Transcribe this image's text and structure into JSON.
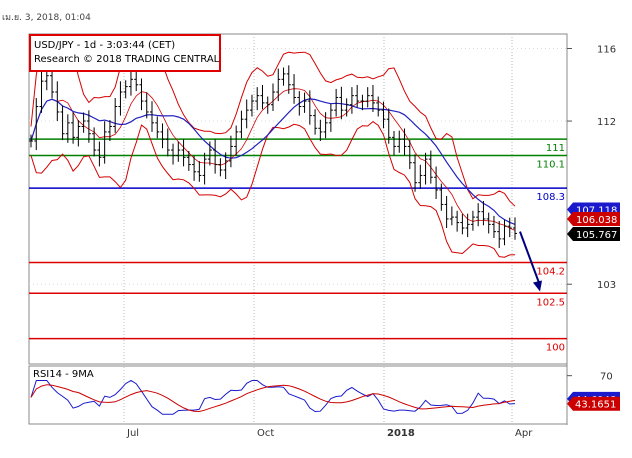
{
  "timestamp": "เม.ย. 3, 2018, 01:04",
  "chart_data": {
    "type": "candlestick",
    "title": "USD/JPY - 1d - 3:03:44 (CET)",
    "subtitle": "Research © 2018 TRADING CENTRAL",
    "x_ticks": [
      "Jul",
      "Oct",
      "2018",
      "Apr"
    ],
    "y_ticks": [
      116,
      112,
      103
    ],
    "ylim": [
      98.6,
      116.8
    ],
    "levels": [
      {
        "label": "111",
        "value": 111.0,
        "color": "#008000"
      },
      {
        "label": "110.1",
        "value": 110.1,
        "color": "#008000"
      },
      {
        "label": "108.3",
        "value": 108.3,
        "color": "#0000cc"
      },
      {
        "label": "104.2",
        "value": 104.2,
        "color": "#dd0000"
      },
      {
        "label": "102.5",
        "value": 102.5,
        "color": "#dd0000"
      },
      {
        "label": "100",
        "value": 100.0,
        "color": "#dd0000"
      }
    ],
    "price_tags": [
      {
        "label": "107.118",
        "value": 107.118,
        "bg": "#1a1acc",
        "fg": "#ffffff"
      },
      {
        "label": "106.038",
        "value": 106.6,
        "bg": "#cc0000",
        "fg": "#ffffff"
      },
      {
        "label": "105.767",
        "value": 105.767,
        "bg": "#000000",
        "fg": "#ffffff"
      }
    ],
    "forecast_arrow": {
      "from": 105.9,
      "to": 102.6
    },
    "close_series": [
      110.9,
      112.8,
      114.2,
      114.5,
      113.6,
      112.5,
      111.3,
      111.9,
      111.1,
      111.7,
      112.0,
      111.3,
      110.4,
      110.0,
      111.4,
      111.7,
      112.8,
      113.6,
      113.9,
      114.3,
      114.0,
      113.1,
      112.5,
      111.9,
      111.4,
      111.0,
      110.4,
      110.1,
      110.4,
      110.0,
      109.6,
      109.2,
      109.0,
      109.9,
      110.4,
      109.6,
      109.3,
      109.8,
      110.6,
      111.4,
      112.1,
      112.6,
      113.1,
      113.4,
      113.0,
      112.9,
      113.6,
      114.3,
      114.6,
      114.0,
      113.3,
      112.8,
      113.1,
      112.3,
      111.6,
      111.4,
      111.9,
      112.6,
      113.3,
      112.6,
      112.9,
      113.4,
      113.1,
      113.1,
      113.4,
      113.0,
      112.6,
      112.1,
      111.1,
      110.6,
      111.0,
      110.6,
      109.7,
      108.6,
      109.0,
      109.9,
      108.9,
      108.2,
      107.4,
      106.6,
      106.7,
      106.4,
      106.1,
      106.3,
      106.7,
      107.0,
      106.6,
      106.3,
      105.9,
      105.5,
      106.2,
      106.1,
      105.8
    ],
    "rsi_panel": {
      "title": "RSI14 - 9MA",
      "y_ticks": [
        70
      ],
      "ylim": [
        20,
        80
      ],
      "tags": [
        {
          "label": "44.6948",
          "value": 46.0,
          "bg": "#1a1acc",
          "fg": "#ffffff"
        },
        {
          "label": "43.1651",
          "value": 41.0,
          "bg": "#cc0000",
          "fg": "#ffffff"
        }
      ]
    }
  }
}
